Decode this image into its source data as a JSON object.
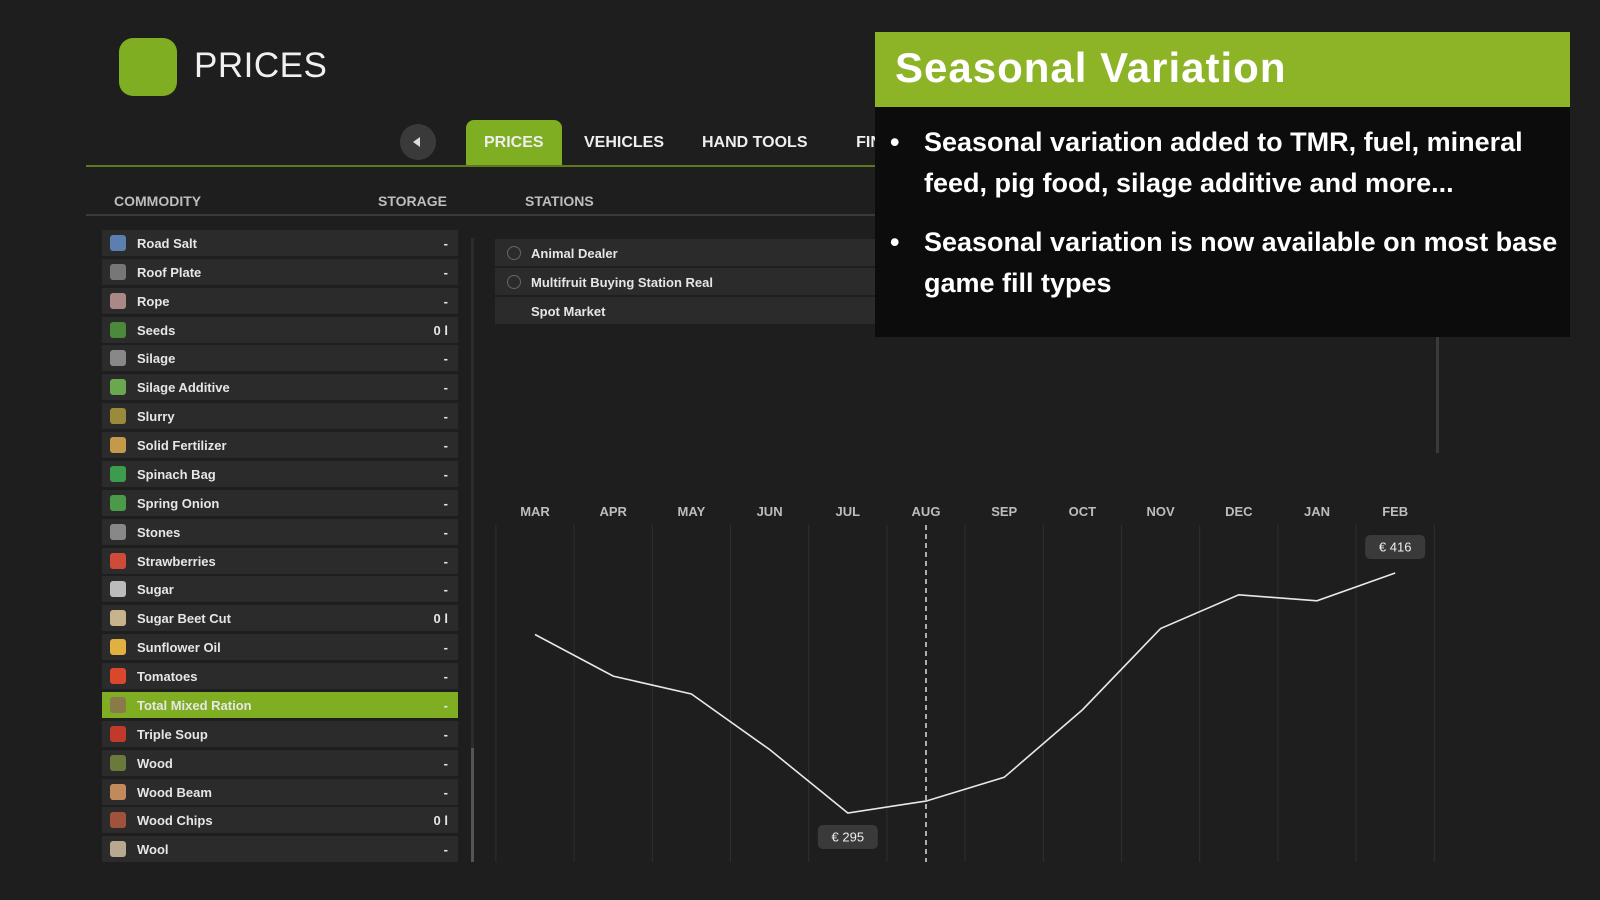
{
  "header": {
    "title": "PRICES"
  },
  "tabs": [
    {
      "label": "PRICES",
      "active": true
    },
    {
      "label": "VEHICLES",
      "active": false
    },
    {
      "label": "HAND TOOLS",
      "active": false
    },
    {
      "label": "FINANCES",
      "active": false
    }
  ],
  "columns": {
    "commodity": "COMMODITY",
    "storage": "STORAGE",
    "stations": "STATIONS"
  },
  "commodities": [
    {
      "name": "Road Salt",
      "storage": "-"
    },
    {
      "name": "Roof Plate",
      "storage": "-"
    },
    {
      "name": "Rope",
      "storage": "-"
    },
    {
      "name": "Seeds",
      "storage": "0 l"
    },
    {
      "name": "Silage",
      "storage": "-"
    },
    {
      "name": "Silage Additive",
      "storage": "-"
    },
    {
      "name": "Slurry",
      "storage": "-"
    },
    {
      "name": "Solid Fertilizer",
      "storage": "-"
    },
    {
      "name": "Spinach Bag",
      "storage": "-"
    },
    {
      "name": "Spring Onion",
      "storage": "-"
    },
    {
      "name": "Stones",
      "storage": "-"
    },
    {
      "name": "Strawberries",
      "storage": "-"
    },
    {
      "name": "Sugar",
      "storage": "-"
    },
    {
      "name": "Sugar Beet Cut",
      "storage": "0 l"
    },
    {
      "name": "Sunflower Oil",
      "storage": "-"
    },
    {
      "name": "Tomatoes",
      "storage": "-"
    },
    {
      "name": "Total Mixed Ration",
      "storage": "-",
      "selected": true
    },
    {
      "name": "Triple Soup",
      "storage": "-"
    },
    {
      "name": "Wood",
      "storage": "-"
    },
    {
      "name": "Wood Beam",
      "storage": "-"
    },
    {
      "name": "Wood Chips",
      "storage": "0 l"
    },
    {
      "name": "Wool",
      "storage": "-"
    }
  ],
  "stations": [
    "Animal Dealer",
    "Multifruit Buying Station Real",
    "Spot Market"
  ],
  "price_chart": {
    "type": "line",
    "categories": [
      "MAR",
      "APR",
      "MAY",
      "JUN",
      "JUL",
      "AUG",
      "SEP",
      "OCT",
      "NOV",
      "DEC",
      "JAN",
      "FEB"
    ],
    "values": [
      385,
      364,
      355,
      327,
      295,
      301,
      313,
      347,
      388,
      405,
      402,
      416
    ],
    "value_labels": [
      null,
      null,
      null,
      null,
      "€ 295",
      null,
      null,
      null,
      null,
      null,
      null,
      "€ 416"
    ],
    "color": "#e8e8e8"
  },
  "overlay": {
    "title": "Seasonal Variation",
    "bullets": [
      "Seasonal variation added to TMR, fuel, mineral feed, pig food, silage additive and more...",
      "Seasonal variation is now available on most base game fill types"
    ]
  }
}
